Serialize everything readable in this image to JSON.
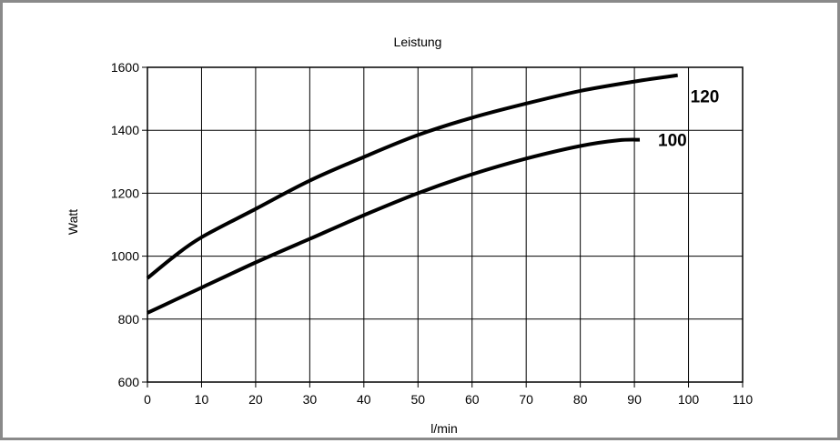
{
  "chart_data": {
    "type": "line",
    "title": "Leistung",
    "xlabel": "l/min",
    "ylabel": "Watt",
    "xlim": [
      0,
      110
    ],
    "ylim": [
      600,
      1600
    ],
    "xticks": [
      0,
      10,
      20,
      30,
      40,
      50,
      60,
      70,
      80,
      90,
      100,
      110
    ],
    "yticks": [
      600,
      800,
      1000,
      1200,
      1400,
      1600
    ],
    "grid": true,
    "series": [
      {
        "name": "120",
        "x": [
          0,
          5,
          10,
          20,
          30,
          40,
          50,
          60,
          70,
          80,
          90,
          98
        ],
        "y": [
          930,
          1000,
          1060,
          1150,
          1240,
          1315,
          1385,
          1440,
          1485,
          1525,
          1555,
          1575
        ]
      },
      {
        "name": "100",
        "x": [
          0,
          5,
          10,
          20,
          30,
          40,
          50,
          60,
          70,
          80,
          87,
          91
        ],
        "y": [
          820,
          860,
          900,
          980,
          1055,
          1130,
          1200,
          1260,
          1310,
          1350,
          1368,
          1370
        ]
      }
    ]
  }
}
